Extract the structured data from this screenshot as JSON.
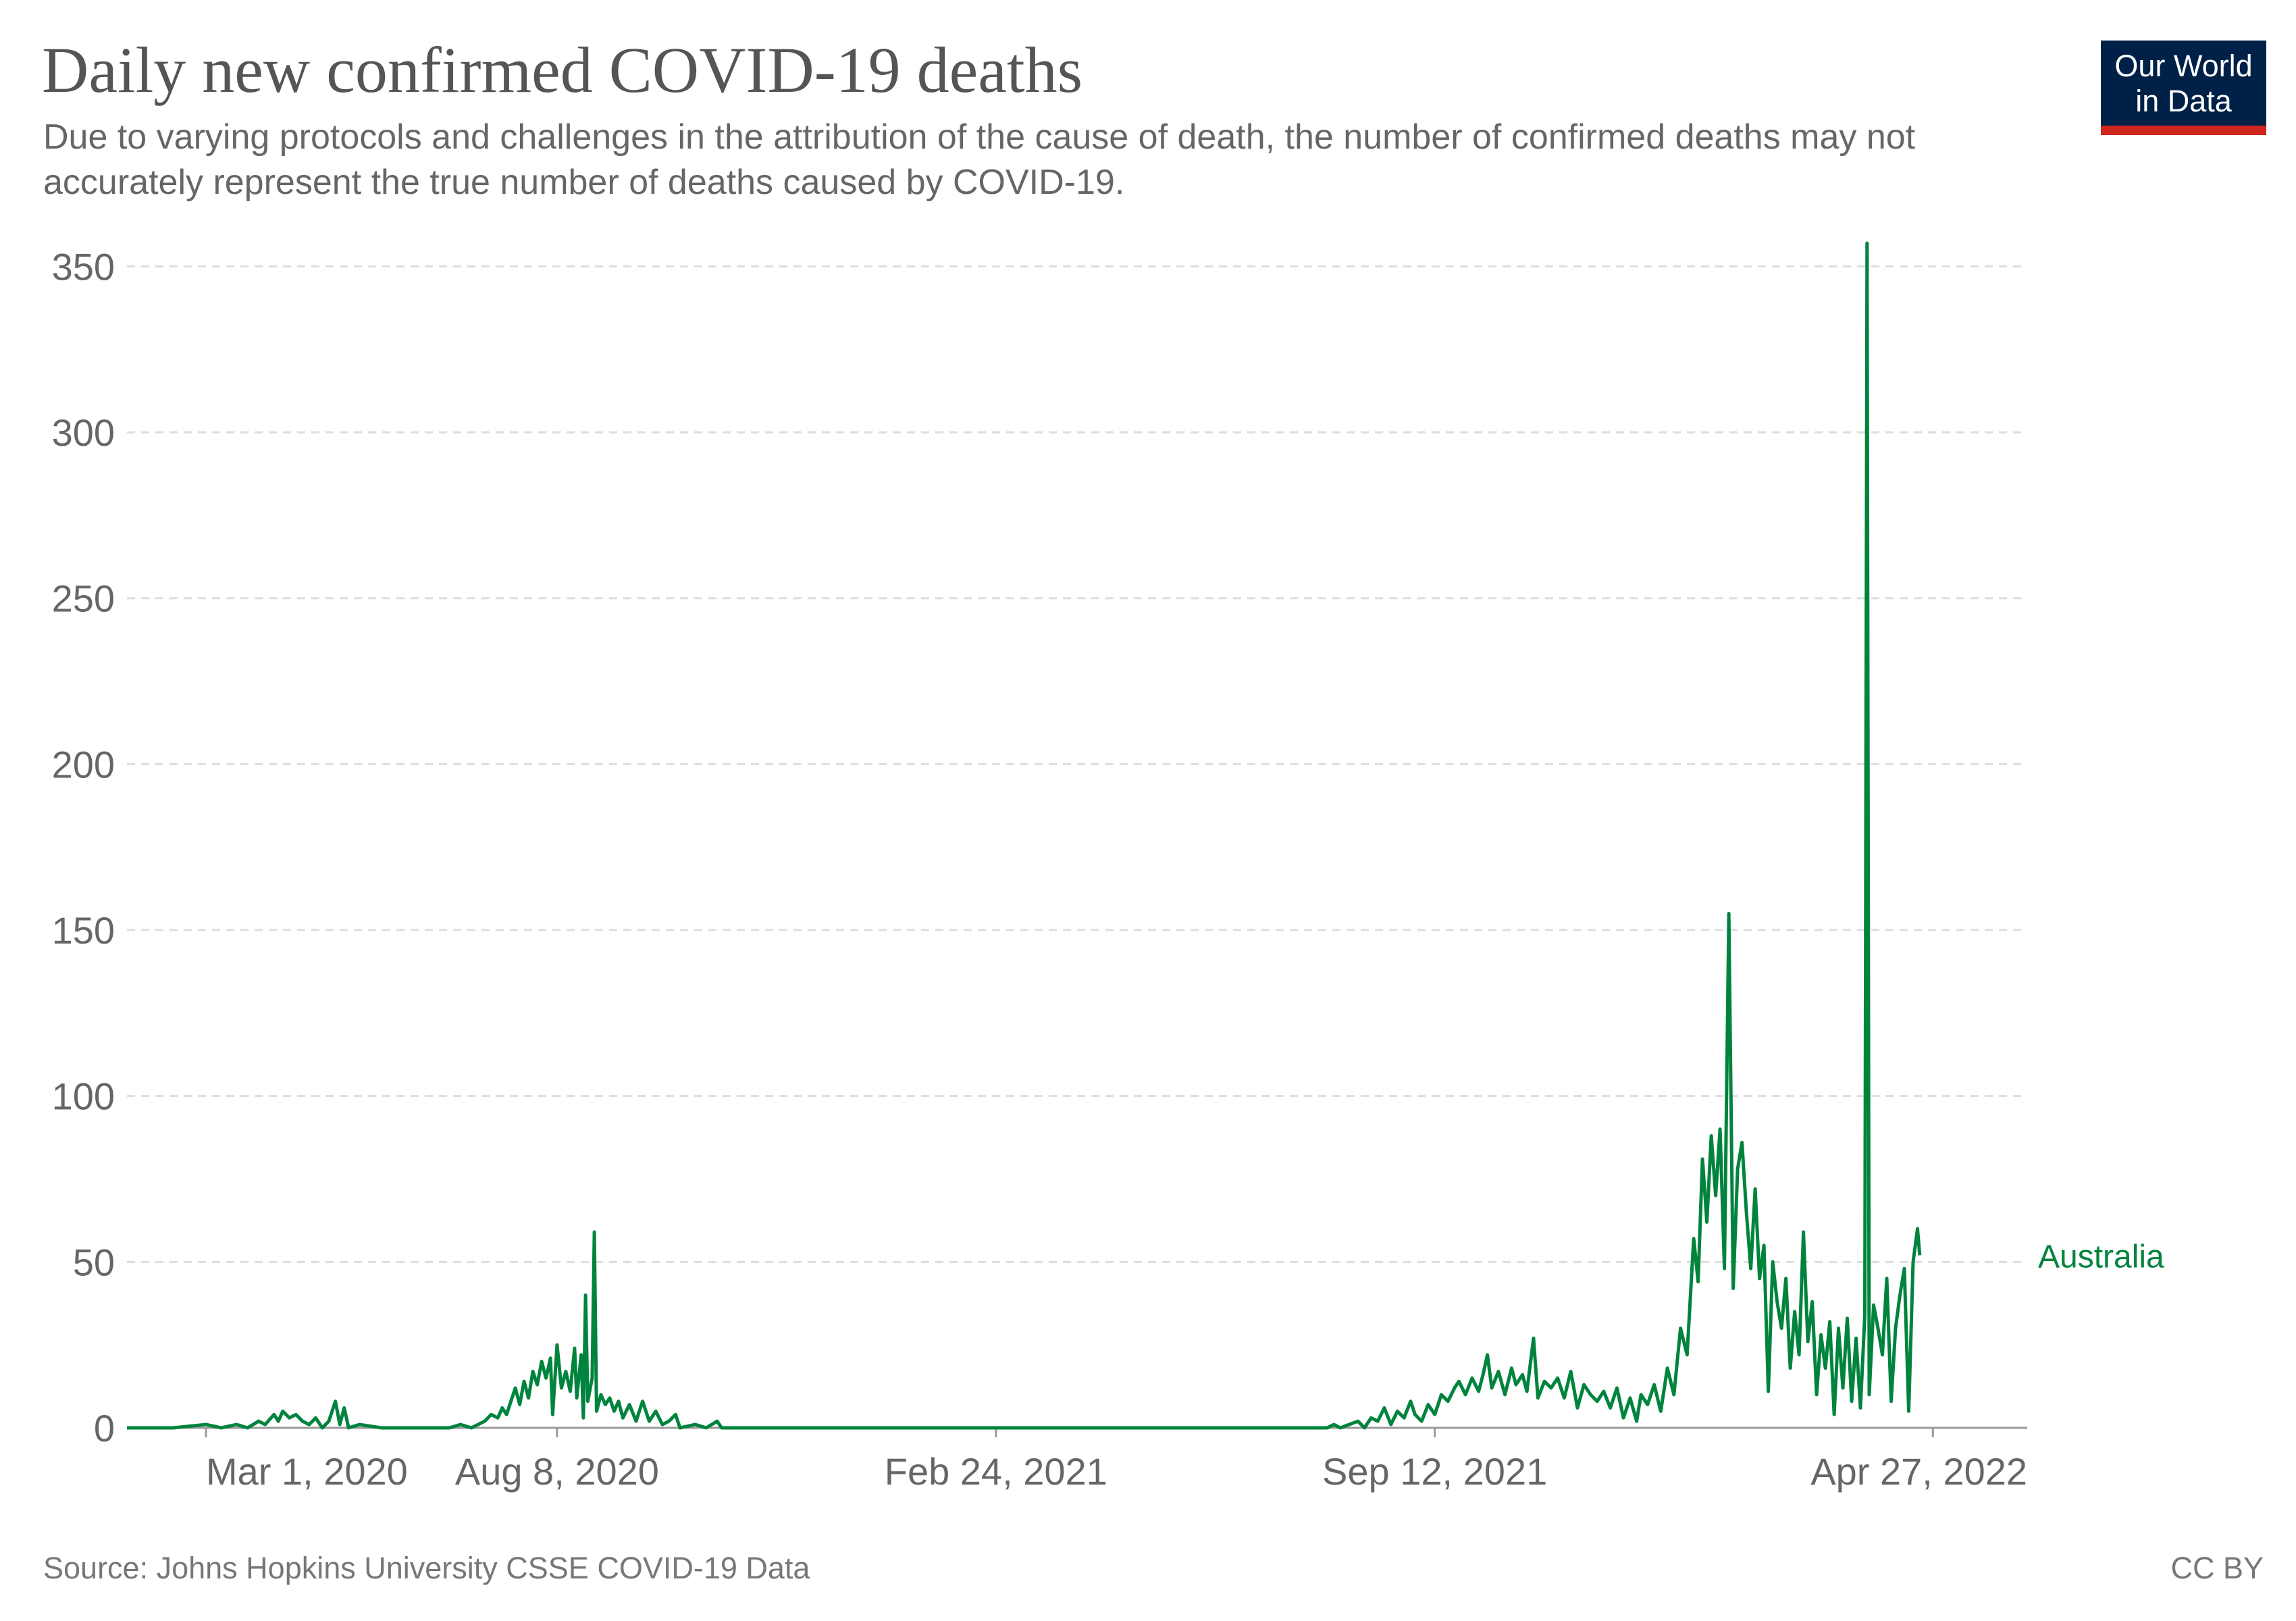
{
  "title": "Daily new confirmed COVID-19 deaths",
  "subtitle": "Due to varying protocols and challenges in the attribution of the cause of death, the number of confirmed deaths may not accurately represent the true number of deaths caused by COVID-19.",
  "logo": {
    "line1": "Our World",
    "line2": "in Data"
  },
  "footer": {
    "source": "Source: Johns Hopkins University CSSE COVID-19 Data",
    "license": "CC BY"
  },
  "colors": {
    "series": "#00843d",
    "logo_bg": "#002147",
    "logo_bar": "#ce261e"
  },
  "chart_data": {
    "type": "line",
    "title": "Daily new confirmed COVID-19 deaths",
    "xlabel": "",
    "ylabel": "",
    "x_type": "date",
    "xlim": [
      "2020-01-25",
      "2022-06-09"
    ],
    "ylim": [
      0,
      357
    ],
    "y_ticks": [
      0,
      50,
      100,
      150,
      200,
      250,
      300,
      350
    ],
    "x_ticks": [
      {
        "date": "2020-03-01",
        "label": "Mar 1, 2020"
      },
      {
        "date": "2020-08-08",
        "label": "Aug 8, 2020"
      },
      {
        "date": "2021-02-24",
        "label": "Feb 24, 2021"
      },
      {
        "date": "2021-09-12",
        "label": "Sep 12, 2021"
      },
      {
        "date": "2022-04-27",
        "label": "Apr 27, 2022"
      }
    ],
    "grid": "horizontal dashed",
    "legend": "inline label at line end",
    "series": [
      {
        "name": "Australia",
        "color": "#00843d",
        "points": [
          [
            "2020-01-25",
            0
          ],
          [
            "2020-02-15",
            0
          ],
          [
            "2020-03-01",
            1
          ],
          [
            "2020-03-08",
            0
          ],
          [
            "2020-03-15",
            1
          ],
          [
            "2020-03-20",
            0
          ],
          [
            "2020-03-25",
            2
          ],
          [
            "2020-03-28",
            1
          ],
          [
            "2020-04-01",
            4
          ],
          [
            "2020-04-03",
            2
          ],
          [
            "2020-04-05",
            5
          ],
          [
            "2020-04-08",
            3
          ],
          [
            "2020-04-11",
            4
          ],
          [
            "2020-04-14",
            2
          ],
          [
            "2020-04-17",
            1
          ],
          [
            "2020-04-20",
            3
          ],
          [
            "2020-04-23",
            0
          ],
          [
            "2020-04-26",
            2
          ],
          [
            "2020-04-29",
            8
          ],
          [
            "2020-05-01",
            1
          ],
          [
            "2020-05-03",
            6
          ],
          [
            "2020-05-05",
            0
          ],
          [
            "2020-05-10",
            1
          ],
          [
            "2020-05-20",
            0
          ],
          [
            "2020-06-20",
            0
          ],
          [
            "2020-06-25",
            1
          ],
          [
            "2020-06-30",
            0
          ],
          [
            "2020-07-03",
            1
          ],
          [
            "2020-07-06",
            2
          ],
          [
            "2020-07-09",
            4
          ],
          [
            "2020-07-12",
            3
          ],
          [
            "2020-07-14",
            6
          ],
          [
            "2020-07-16",
            4
          ],
          [
            "2020-07-18",
            8
          ],
          [
            "2020-07-20",
            12
          ],
          [
            "2020-07-22",
            7
          ],
          [
            "2020-07-24",
            14
          ],
          [
            "2020-07-26",
            9
          ],
          [
            "2020-07-28",
            17
          ],
          [
            "2020-07-30",
            13
          ],
          [
            "2020-08-01",
            20
          ],
          [
            "2020-08-03",
            15
          ],
          [
            "2020-08-05",
            21
          ],
          [
            "2020-08-06",
            4
          ],
          [
            "2020-08-08",
            25
          ],
          [
            "2020-08-10",
            12
          ],
          [
            "2020-08-12",
            17
          ],
          [
            "2020-08-14",
            11
          ],
          [
            "2020-08-16",
            24
          ],
          [
            "2020-08-17",
            9
          ],
          [
            "2020-08-19",
            22
          ],
          [
            "2020-08-20",
            3
          ],
          [
            "2020-08-21",
            40
          ],
          [
            "2020-08-22",
            8
          ],
          [
            "2020-08-24",
            15
          ],
          [
            "2020-08-25",
            59
          ],
          [
            "2020-08-26",
            5
          ],
          [
            "2020-08-28",
            10
          ],
          [
            "2020-08-30",
            7
          ],
          [
            "2020-09-01",
            9
          ],
          [
            "2020-09-03",
            5
          ],
          [
            "2020-09-05",
            8
          ],
          [
            "2020-09-07",
            3
          ],
          [
            "2020-09-10",
            7
          ],
          [
            "2020-09-13",
            2
          ],
          [
            "2020-09-16",
            8
          ],
          [
            "2020-09-19",
            2
          ],
          [
            "2020-09-22",
            5
          ],
          [
            "2020-09-25",
            1
          ],
          [
            "2020-09-28",
            2
          ],
          [
            "2020-10-01",
            4
          ],
          [
            "2020-10-03",
            0
          ],
          [
            "2020-10-10",
            1
          ],
          [
            "2020-10-15",
            0
          ],
          [
            "2020-10-20",
            2
          ],
          [
            "2020-10-22",
            0
          ],
          [
            "2021-01-01",
            0
          ],
          [
            "2021-03-15",
            0
          ],
          [
            "2021-06-01",
            0
          ],
          [
            "2021-07-25",
            0
          ],
          [
            "2021-07-28",
            1
          ],
          [
            "2021-07-31",
            0
          ],
          [
            "2021-08-04",
            1
          ],
          [
            "2021-08-08",
            2
          ],
          [
            "2021-08-11",
            0
          ],
          [
            "2021-08-14",
            3
          ],
          [
            "2021-08-17",
            2
          ],
          [
            "2021-08-20",
            6
          ],
          [
            "2021-08-23",
            1
          ],
          [
            "2021-08-26",
            5
          ],
          [
            "2021-08-29",
            3
          ],
          [
            "2021-09-01",
            8
          ],
          [
            "2021-09-03",
            4
          ],
          [
            "2021-09-06",
            2
          ],
          [
            "2021-09-09",
            7
          ],
          [
            "2021-09-12",
            4
          ],
          [
            "2021-09-15",
            10
          ],
          [
            "2021-09-18",
            8
          ],
          [
            "2021-09-21",
            12
          ],
          [
            "2021-09-23",
            14
          ],
          [
            "2021-09-26",
            10
          ],
          [
            "2021-09-29",
            15
          ],
          [
            "2021-10-02",
            11
          ],
          [
            "2021-10-04",
            16
          ],
          [
            "2021-10-06",
            22
          ],
          [
            "2021-10-08",
            12
          ],
          [
            "2021-10-11",
            17
          ],
          [
            "2021-10-14",
            10
          ],
          [
            "2021-10-17",
            18
          ],
          [
            "2021-10-19",
            13
          ],
          [
            "2021-10-22",
            16
          ],
          [
            "2021-10-24",
            11
          ],
          [
            "2021-10-27",
            27
          ],
          [
            "2021-10-29",
            9
          ],
          [
            "2021-11-01",
            14
          ],
          [
            "2021-11-04",
            12
          ],
          [
            "2021-11-07",
            15
          ],
          [
            "2021-11-10",
            9
          ],
          [
            "2021-11-13",
            17
          ],
          [
            "2021-11-16",
            6
          ],
          [
            "2021-11-19",
            13
          ],
          [
            "2021-11-22",
            10
          ],
          [
            "2021-11-25",
            8
          ],
          [
            "2021-11-28",
            11
          ],
          [
            "2021-12-01",
            6
          ],
          [
            "2021-12-04",
            12
          ],
          [
            "2021-12-07",
            3
          ],
          [
            "2021-12-10",
            9
          ],
          [
            "2021-12-13",
            2
          ],
          [
            "2021-12-15",
            10
          ],
          [
            "2021-12-18",
            7
          ],
          [
            "2021-12-21",
            13
          ],
          [
            "2021-12-24",
            5
          ],
          [
            "2021-12-27",
            18
          ],
          [
            "2021-12-30",
            10
          ],
          [
            "2022-01-02",
            30
          ],
          [
            "2022-01-05",
            22
          ],
          [
            "2022-01-08",
            57
          ],
          [
            "2022-01-10",
            44
          ],
          [
            "2022-01-12",
            81
          ],
          [
            "2022-01-14",
            62
          ],
          [
            "2022-01-16",
            88
          ],
          [
            "2022-01-18",
            70
          ],
          [
            "2022-01-20",
            90
          ],
          [
            "2022-01-22",
            48
          ],
          [
            "2022-01-24",
            155
          ],
          [
            "2022-01-26",
            42
          ],
          [
            "2022-01-28",
            78
          ],
          [
            "2022-01-30",
            86
          ],
          [
            "2022-02-01",
            65
          ],
          [
            "2022-02-03",
            48
          ],
          [
            "2022-02-05",
            72
          ],
          [
            "2022-02-07",
            45
          ],
          [
            "2022-02-09",
            55
          ],
          [
            "2022-02-11",
            11
          ],
          [
            "2022-02-13",
            50
          ],
          [
            "2022-02-15",
            38
          ],
          [
            "2022-02-17",
            30
          ],
          [
            "2022-02-19",
            45
          ],
          [
            "2022-02-21",
            18
          ],
          [
            "2022-02-23",
            35
          ],
          [
            "2022-02-25",
            22
          ],
          [
            "2022-02-27",
            59
          ],
          [
            "2022-03-01",
            26
          ],
          [
            "2022-03-03",
            38
          ],
          [
            "2022-03-05",
            10
          ],
          [
            "2022-03-07",
            28
          ],
          [
            "2022-03-09",
            18
          ],
          [
            "2022-03-11",
            32
          ],
          [
            "2022-03-13",
            4
          ],
          [
            "2022-03-15",
            30
          ],
          [
            "2022-03-17",
            12
          ],
          [
            "2022-03-19",
            33
          ],
          [
            "2022-03-21",
            8
          ],
          [
            "2022-03-23",
            27
          ],
          [
            "2022-03-25",
            6
          ],
          [
            "2022-03-27",
            34
          ],
          [
            "2022-03-28",
            357
          ],
          [
            "2022-03-29",
            10
          ],
          [
            "2022-03-31",
            37
          ],
          [
            "2022-04-02",
            30
          ],
          [
            "2022-04-04",
            22
          ],
          [
            "2022-04-06",
            45
          ],
          [
            "2022-04-08",
            8
          ],
          [
            "2022-04-10",
            30
          ],
          [
            "2022-04-12",
            40
          ],
          [
            "2022-04-14",
            48
          ],
          [
            "2022-04-16",
            5
          ],
          [
            "2022-04-18",
            50
          ],
          [
            "2022-04-20",
            60
          ],
          [
            "2022-04-21",
            52
          ]
        ]
      }
    ]
  }
}
